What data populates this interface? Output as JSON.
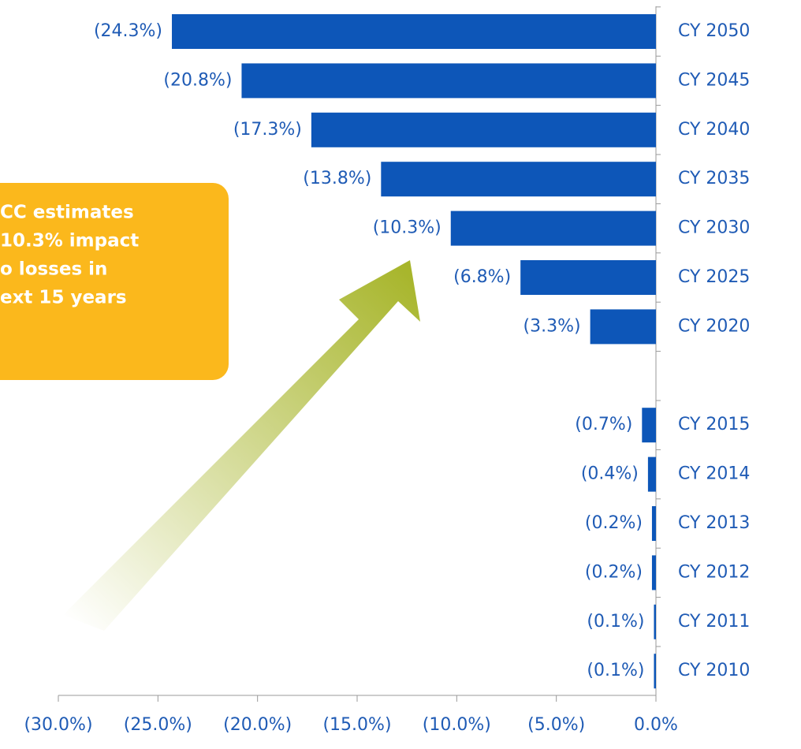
{
  "chart_data": {
    "type": "hbar",
    "categories": [
      "CY 2050",
      "CY 2045",
      "CY 2040",
      "CY 2035",
      "CY 2030",
      "CY 2025",
      "CY 2020",
      null,
      "CY 2015",
      "CY 2014",
      "CY 2013",
      "CY 2012",
      "CY 2011",
      "CY 2010"
    ],
    "values": [
      -24.3,
      -20.8,
      -17.3,
      -13.8,
      -10.3,
      -6.8,
      -3.3,
      null,
      -0.7,
      -0.4,
      -0.2,
      -0.2,
      -0.1,
      -0.1
    ],
    "value_labels": [
      "(24.3%)",
      "(20.8%)",
      "(17.3%)",
      "(13.8%)",
      "(10.3%)",
      "(6.8%)",
      "(3.3%)",
      null,
      "(0.7%)",
      "(0.4%)",
      "(0.2%)",
      "(0.2%)",
      "(0.1%)",
      "(0.1%)"
    ],
    "color": "#0d56b8",
    "xlim": [
      -30,
      0
    ],
    "xticks": [
      {
        "value": -30,
        "label": "(30.0%)"
      },
      {
        "value": -25,
        "label": "(25.0%)"
      },
      {
        "value": -20,
        "label": "(20.0%)"
      },
      {
        "value": -15,
        "label": "(15.0%)"
      },
      {
        "value": -10,
        "label": "(10.0%)"
      },
      {
        "value": -5,
        "label": "(5.0%)"
      },
      {
        "value": 0,
        "label": "0.0%"
      }
    ],
    "annotation": [
      "CC estimates",
      "10.3% impact",
      "o losses in",
      "ext 15 years"
    ]
  }
}
